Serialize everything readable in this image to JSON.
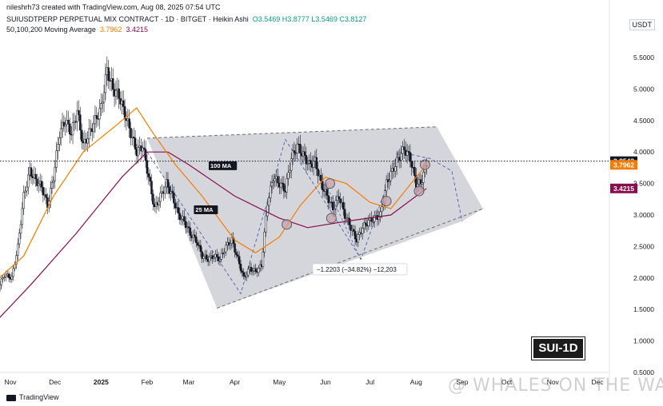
{
  "header": {
    "created_by": "nileshrh73 created with TradingView.com, Aug 08, 2025 07:54 UTC",
    "symbol": "SUIUSDTPERP PERPETUAL MIX CONTRACT · 1D · BITGET · Heikin Ashi",
    "ohlc": "O3.5469  H3.8777  L3.5469  C3.8127",
    "ma_label": "50,100,200 Moving Average",
    "ma_val_1": "3.7962",
    "ma_val_2": "3.4215"
  },
  "currency": "USDT",
  "badge": "SUI-1D",
  "tv_logo": "TradingView",
  "watermark": "@ WHALES ON THE WAY",
  "colors": {
    "up": "#089981",
    "candle": "#131722",
    "ma50": "#f57c00",
    "ma100": "#880e4f",
    "wedge_fill": "#b2b5be",
    "price_tag": "#131722"
  },
  "chart_data": {
    "type": "candlestick",
    "ylim": [
      0.5,
      5.75
    ],
    "y_ticks": [
      5.5,
      5.0,
      4.5,
      4.0,
      3.5,
      3.0,
      2.5,
      2.0,
      1.5,
      1.0,
      0.5
    ],
    "y_tick_labels": [
      "5.5000",
      "5.0000",
      "4.5000",
      "4.0000",
      "3.5000",
      "3.0000",
      "2.5000",
      "2.0000",
      "1.5000",
      "1.0000",
      "0.5000"
    ],
    "x_ticks": [
      {
        "label": "Nov",
        "date": "2024-11-01"
      },
      {
        "label": "Dec",
        "date": "2024-12-01"
      },
      {
        "label": "2025",
        "date": "2025-01-01"
      },
      {
        "label": "Feb",
        "date": "2025-02-01"
      },
      {
        "label": "Mar",
        "date": "2025-03-01"
      },
      {
        "label": "Apr",
        "date": "2025-04-01"
      },
      {
        "label": "May",
        "date": "2025-05-01"
      },
      {
        "label": "Jun",
        "date": "2025-06-01"
      },
      {
        "label": "Jul",
        "date": "2025-07-01"
      },
      {
        "label": "Aug",
        "date": "2025-08-01"
      },
      {
        "label": "Sep",
        "date": "2025-09-01"
      },
      {
        "label": "Oct",
        "date": "2025-10-01"
      },
      {
        "label": "Nov",
        "date": "2025-11-01"
      },
      {
        "label": "Dec",
        "date": "2025-12-01"
      }
    ],
    "price_path": [
      [
        "2024-10-20",
        1.75
      ],
      [
        "2024-10-24",
        1.85
      ],
      [
        "2024-10-28",
        2.05
      ],
      [
        "2024-11-02",
        2.0
      ],
      [
        "2024-11-06",
        2.5
      ],
      [
        "2024-11-10",
        3.3
      ],
      [
        "2024-11-14",
        3.7
      ],
      [
        "2024-11-18",
        3.55
      ],
      [
        "2024-11-22",
        3.45
      ],
      [
        "2024-11-26",
        3.15
      ],
      [
        "2024-11-30",
        3.6
      ],
      [
        "2024-12-04",
        4.3
      ],
      [
        "2024-12-08",
        4.5
      ],
      [
        "2024-12-12",
        4.3
      ],
      [
        "2024-12-16",
        4.65
      ],
      [
        "2024-12-20",
        4.1
      ],
      [
        "2024-12-24",
        4.3
      ],
      [
        "2024-12-28",
        4.5
      ],
      [
        "2025-01-01",
        4.7
      ],
      [
        "2025-01-05",
        5.3
      ],
      [
        "2025-01-09",
        5.0
      ],
      [
        "2025-01-13",
        4.9
      ],
      [
        "2025-01-17",
        4.6
      ],
      [
        "2025-01-21",
        4.3
      ],
      [
        "2025-01-25",
        4.0
      ],
      [
        "2025-01-29",
        4.1
      ],
      [
        "2025-02-02",
        3.6
      ],
      [
        "2025-02-06",
        3.1
      ],
      [
        "2025-02-10",
        3.3
      ],
      [
        "2025-02-14",
        3.5
      ],
      [
        "2025-02-18",
        3.3
      ],
      [
        "2025-02-22",
        3.0
      ],
      [
        "2025-02-26",
        2.9
      ],
      [
        "2025-03-02",
        2.7
      ],
      [
        "2025-03-06",
        2.6
      ],
      [
        "2025-03-10",
        2.35
      ],
      [
        "2025-03-14",
        2.3
      ],
      [
        "2025-03-18",
        2.35
      ],
      [
        "2025-03-22",
        2.3
      ],
      [
        "2025-03-26",
        2.5
      ],
      [
        "2025-03-30",
        2.6
      ],
      [
        "2025-04-03",
        2.3
      ],
      [
        "2025-04-07",
        2.0
      ],
      [
        "2025-04-11",
        2.15
      ],
      [
        "2025-04-15",
        2.1
      ],
      [
        "2025-04-19",
        2.2
      ],
      [
        "2025-04-23",
        3.2
      ],
      [
        "2025-04-27",
        3.6
      ],
      [
        "2025-05-01",
        3.5
      ],
      [
        "2025-05-05",
        3.4
      ],
      [
        "2025-05-09",
        3.9
      ],
      [
        "2025-05-13",
        4.1
      ],
      [
        "2025-05-17",
        3.95
      ],
      [
        "2025-05-21",
        3.8
      ],
      [
        "2025-05-25",
        3.85
      ],
      [
        "2025-05-29",
        3.5
      ],
      [
        "2025-06-02",
        3.3
      ],
      [
        "2025-06-06",
        3.1
      ],
      [
        "2025-06-10",
        3.3
      ],
      [
        "2025-06-14",
        3.0
      ],
      [
        "2025-06-18",
        2.8
      ],
      [
        "2025-06-22",
        2.6
      ],
      [
        "2025-06-26",
        2.8
      ],
      [
        "2025-06-30",
        2.9
      ],
      [
        "2025-07-04",
        2.95
      ],
      [
        "2025-07-08",
        3.0
      ],
      [
        "2025-07-12",
        3.5
      ],
      [
        "2025-07-16",
        3.7
      ],
      [
        "2025-07-20",
        3.9
      ],
      [
        "2025-07-24",
        4.05
      ],
      [
        "2025-07-28",
        3.9
      ],
      [
        "2025-08-01",
        3.5
      ],
      [
        "2025-08-04",
        3.5
      ],
      [
        "2025-08-08",
        3.81
      ]
    ],
    "ma50": [
      [
        "2024-10-20",
        1.9
      ],
      [
        "2024-11-10",
        2.35
      ],
      [
        "2024-11-30",
        3.3
      ],
      [
        "2024-12-20",
        4.0
      ],
      [
        "2025-01-10",
        4.4
      ],
      [
        "2025-01-25",
        4.7
      ],
      [
        "2025-02-05",
        4.3
      ],
      [
        "2025-02-20",
        3.8
      ],
      [
        "2025-03-10",
        3.3
      ],
      [
        "2025-04-01",
        2.6
      ],
      [
        "2025-04-15",
        2.4
      ],
      [
        "2025-05-01",
        2.65
      ],
      [
        "2025-05-15",
        3.15
      ],
      [
        "2025-06-01",
        3.6
      ],
      [
        "2025-06-15",
        3.5
      ],
      [
        "2025-07-01",
        3.2
      ],
      [
        "2025-07-15",
        3.1
      ],
      [
        "2025-08-01",
        3.6
      ],
      [
        "2025-08-08",
        3.7962
      ]
    ],
    "ma100": [
      [
        "2024-10-20",
        1.25
      ],
      [
        "2024-11-15",
        1.9
      ],
      [
        "2024-12-15",
        2.7
      ],
      [
        "2025-01-15",
        3.6
      ],
      [
        "2025-02-01",
        4.0
      ],
      [
        "2025-02-15",
        4.0
      ],
      [
        "2025-03-01",
        3.8
      ],
      [
        "2025-04-01",
        3.3
      ],
      [
        "2025-05-01",
        2.95
      ],
      [
        "2025-05-20",
        2.8
      ],
      [
        "2025-06-15",
        2.9
      ],
      [
        "2025-07-15",
        3.0
      ],
      [
        "2025-08-01",
        3.3
      ],
      [
        "2025-08-08",
        3.4215
      ]
    ],
    "wedge": {
      "upper_start": [
        "2025-02-01",
        4.22
      ],
      "upper_end": [
        "2025-08-15",
        4.4
      ],
      "apex": [
        "2025-09-15",
        3.1
      ],
      "lower_end": [
        "2025-09-01",
        2.9
      ],
      "lower_start": [
        "2025-03-20",
        1.52
      ]
    },
    "zigzag": [
      [
        "2025-02-01",
        4.0
      ],
      [
        "2025-04-05",
        1.75
      ],
      [
        "2025-05-05",
        4.2
      ],
      [
        "2025-06-25",
        2.3
      ],
      [
        "2025-07-20",
        4.0
      ],
      [
        "2025-08-10",
        3.9
      ],
      [
        "2025-08-25",
        3.7
      ],
      [
        "2025-09-01",
        2.9
      ]
    ],
    "ma_labels": [
      {
        "text": "100 MA",
        "x": "2025-03-15",
        "y": 3.75
      },
      {
        "text": "25 MA",
        "x": "2025-03-05",
        "y": 3.05
      }
    ],
    "circles": [
      [
        "2025-05-06",
        2.85
      ],
      [
        "2025-06-04",
        3.5
      ],
      [
        "2025-06-05",
        2.95
      ],
      [
        "2025-07-12",
        3.22
      ],
      [
        "2025-08-03",
        3.38
      ],
      [
        "2025-08-07",
        3.8
      ]
    ],
    "measure": {
      "text": "−1.2203 (−34.82%) −12,203",
      "from": [
        "2025-06-01",
        3.5
      ],
      "to": [
        "2025-06-25",
        2.28
      ],
      "label_at": [
        "2025-05-25",
        2.1
      ]
    },
    "last_price": {
      "value": 3.8543,
      "label": "3.8543",
      "color": "#131722"
    },
    "ma_tags": [
      {
        "value": 3.7962,
        "label": "3.7962",
        "color": "#f57c00"
      },
      {
        "value": 3.4215,
        "label": "3.4215",
        "color": "#880e4f"
      }
    ]
  }
}
